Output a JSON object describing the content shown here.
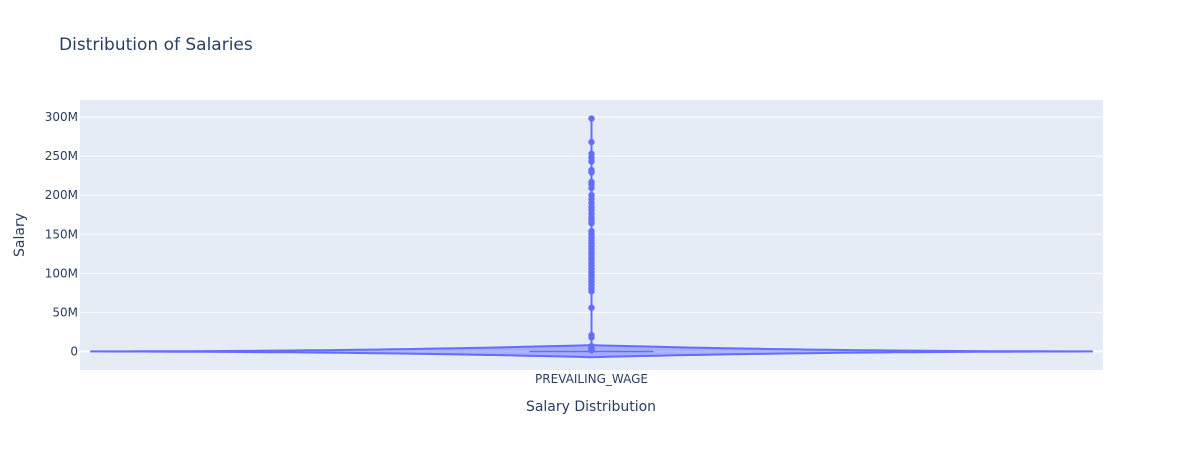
{
  "chart_data": {
    "type": "violin",
    "title": "Distribution of Salaries",
    "xlabel": "Salary Distribution",
    "ylabel": "Salary",
    "categories": [
      "PREVAILING_WAGE"
    ],
    "ylim": [
      -24000000,
      300000000
    ],
    "yticks": [
      0,
      50000000,
      100000000,
      150000000,
      200000000,
      250000000,
      300000000
    ],
    "ytick_labels": [
      "0",
      "50M",
      "100M",
      "150M",
      "200M",
      "250M",
      "300M"
    ],
    "grid": true,
    "series": [
      {
        "category": "PREVAILING_WAGE",
        "median": 70000,
        "outliers": [
          298000000,
          268000000,
          253000000,
          248000000,
          243000000,
          232000000,
          229000000,
          217000000,
          214000000,
          209000000,
          200000000,
          195000000,
          190000000,
          185000000,
          181000000,
          176000000,
          171000000,
          168000000,
          164000000,
          154000000,
          150000000,
          146000000,
          142000000,
          138000000,
          135000000,
          131000000,
          127000000,
          124000000,
          120000000,
          117000000,
          113000000,
          110000000,
          106000000,
          102000000,
          99000000,
          96000000,
          92000000,
          89000000,
          85000000,
          81000000,
          77000000,
          56000000,
          21000000,
          18000000,
          7000000,
          5000000,
          3000000,
          1500000
        ]
      }
    ],
    "colors": {
      "violin_line": "#636efa",
      "violin_fill": "rgba(99,110,250,0.5)",
      "plot_bg": "#e5ecf6",
      "grid": "#ffffff",
      "text": "#2a3f5f"
    }
  }
}
